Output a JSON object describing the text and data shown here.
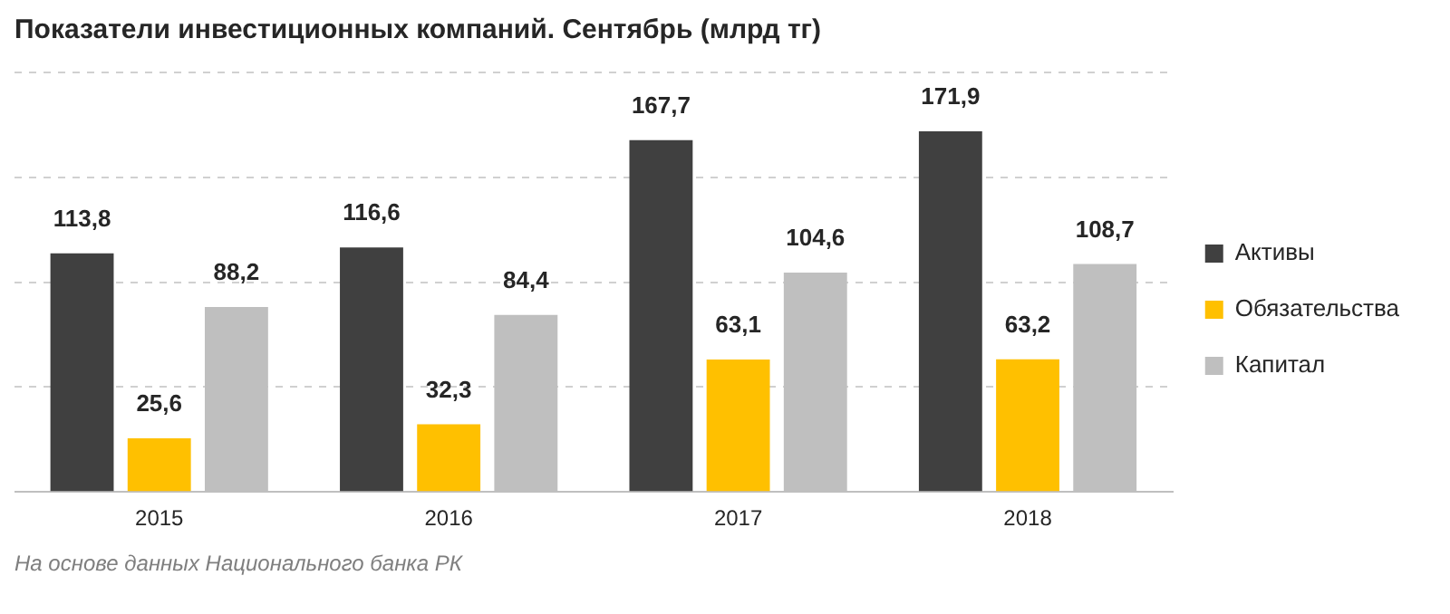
{
  "chart_data": {
    "type": "bar",
    "title": "Показатели инвестиционных компаний. Сентябрь (млрд тг)",
    "categories": [
      "2015",
      "2016",
      "2017",
      "2018"
    ],
    "series": [
      {
        "name": "Активы",
        "color": "#404040",
        "values": [
          113.8,
          116.6,
          167.7,
          171.9
        ],
        "value_labels": [
          "113,8",
          "116,6",
          "167,7",
          "171,9"
        ]
      },
      {
        "name": "Обязательства",
        "color": "#ffc000",
        "values": [
          25.6,
          32.3,
          63.1,
          63.2
        ],
        "value_labels": [
          "25,6",
          "32,3",
          "63,1",
          "63,2"
        ]
      },
      {
        "name": "Капитал",
        "color": "#bfbfbf",
        "values": [
          88.2,
          84.4,
          104.6,
          108.7
        ],
        "value_labels": [
          "88,2",
          "84,4",
          "104,6",
          "108,7"
        ]
      }
    ],
    "grid": "y",
    "legend": "right",
    "annotations": [
      "На основе данных Национального банка РК"
    ]
  }
}
